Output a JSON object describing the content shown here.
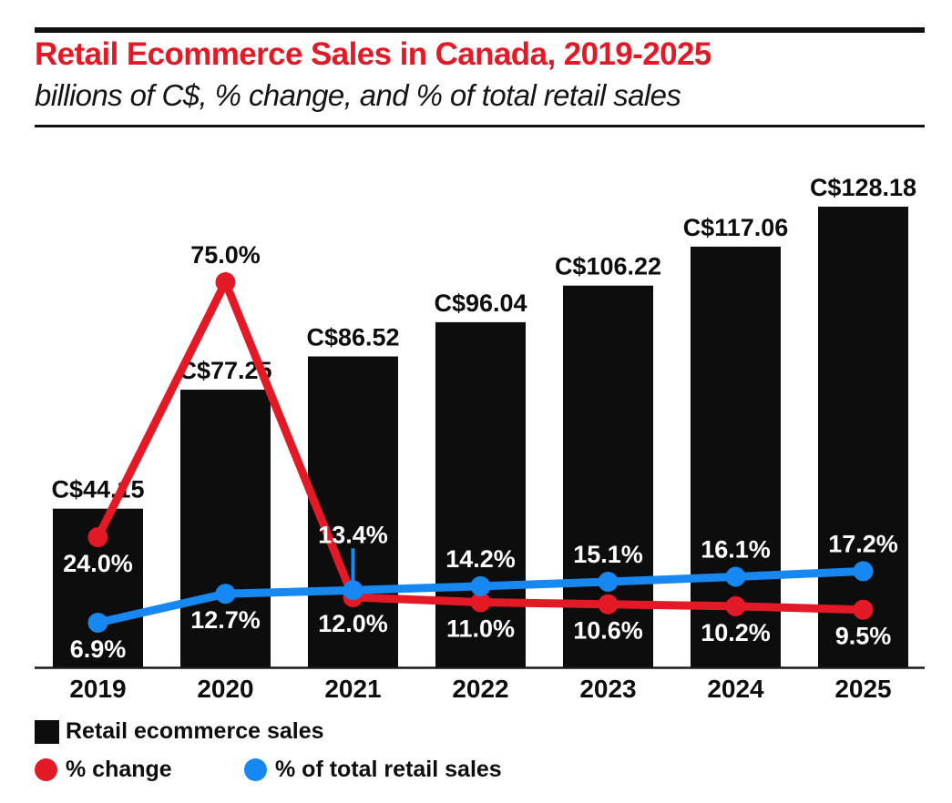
{
  "colors": {
    "title_red": "#e41926",
    "bar_black": "#0d0d0d",
    "line_red": "#e41926",
    "line_blue": "#1787f2",
    "axis": "#1a1a1a",
    "label_white": "#ffffff",
    "label_black": "#0d0d0d"
  },
  "chart_data": {
    "type": "bar",
    "combo": "bar + 2 line series",
    "title": "Retail Ecommerce Sales in Canada, 2019-2025",
    "subtitle": "billions of C$, % change, and % of total retail sales",
    "categories": [
      "2019",
      "2020",
      "2021",
      "2022",
      "2023",
      "2024",
      "2025"
    ],
    "grid": false,
    "legend_position": "bottom-left",
    "xlabel": "",
    "ylabel": "",
    "ylim_bars": [
      0,
      130
    ],
    "series": [
      {
        "name": "Retail ecommerce sales",
        "type": "bar",
        "unit": "billions of C$",
        "color": "#0d0d0d",
        "values": [
          44.15,
          77.25,
          86.52,
          96.04,
          106.22,
          117.06,
          128.18
        ],
        "labels": [
          "C$44.15",
          "C$77.25",
          "C$86.52",
          "C$96.04",
          "C$106.22",
          "C$117.06",
          "C$128.18"
        ]
      },
      {
        "name": "% change",
        "type": "line",
        "unit": "%",
        "color": "#e41926",
        "values": [
          24.0,
          75.0,
          12.0,
          11.0,
          10.6,
          10.2,
          9.5
        ],
        "labels": [
          "24.0%",
          "75.0%",
          "12.0%",
          "11.0%",
          "10.6%",
          "10.2%",
          "9.5%"
        ],
        "label_placement": [
          "below",
          "above",
          "below",
          "below",
          "below",
          "below",
          "below"
        ],
        "label_colors": [
          "#ffffff",
          "#0d0d0d",
          "#ffffff",
          "#ffffff",
          "#ffffff",
          "#ffffff",
          "#ffffff"
        ]
      },
      {
        "name": "% of total retail sales",
        "type": "line",
        "unit": "%",
        "color": "#1787f2",
        "values": [
          6.9,
          12.7,
          13.4,
          14.2,
          15.1,
          16.1,
          17.2
        ],
        "labels": [
          "6.9%",
          "12.7%",
          "13.4%",
          "14.2%",
          "15.1%",
          "16.1%",
          "17.2%"
        ],
        "label_placement": [
          "below",
          "below",
          "callout",
          "above",
          "above",
          "above",
          "above"
        ],
        "label_colors": [
          "#ffffff",
          "#ffffff",
          "#ffffff",
          "#ffffff",
          "#ffffff",
          "#ffffff",
          "#ffffff"
        ]
      }
    ]
  },
  "legend": {
    "items": [
      {
        "label": "Retail ecommerce sales",
        "shape": "square",
        "color": "#0d0d0d"
      },
      {
        "label": "% change",
        "shape": "circle",
        "color": "#e41926"
      },
      {
        "label": "% of total retail sales",
        "shape": "circle",
        "color": "#1787f2"
      }
    ]
  }
}
